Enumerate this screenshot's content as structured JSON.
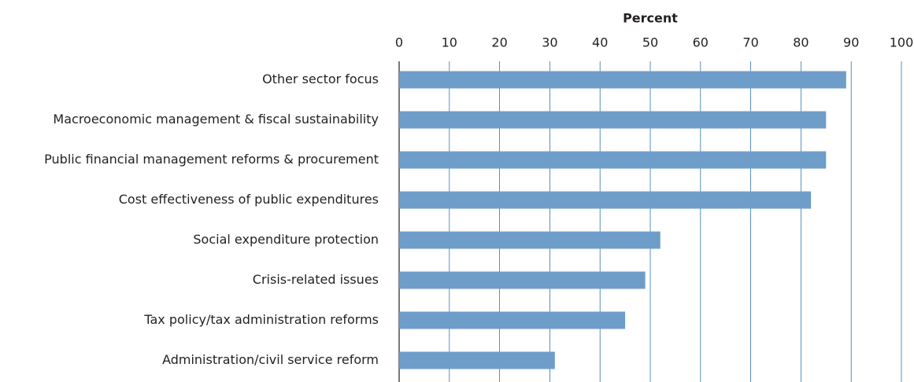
{
  "chart_data": {
    "type": "bar",
    "orientation": "horizontal",
    "x_label": "Percent",
    "categories": [
      "Other sector focus",
      "Macroeconomic management & fiscal sustainability",
      "Public financial management reforms & procurement",
      "Cost effectiveness of public expenditures",
      "Social expenditure protection",
      "Crisis-related issues",
      "Tax policy/tax administration reforms",
      "Administration/civil service reform"
    ],
    "values": [
      89,
      85,
      85,
      82,
      52,
      49,
      45,
      31
    ],
    "color": "#6f9dca",
    "xlim": [
      0,
      100
    ],
    "xticks": [
      0,
      10,
      20,
      30,
      40,
      50,
      60,
      70,
      80,
      90,
      100
    ],
    "grid": true
  }
}
